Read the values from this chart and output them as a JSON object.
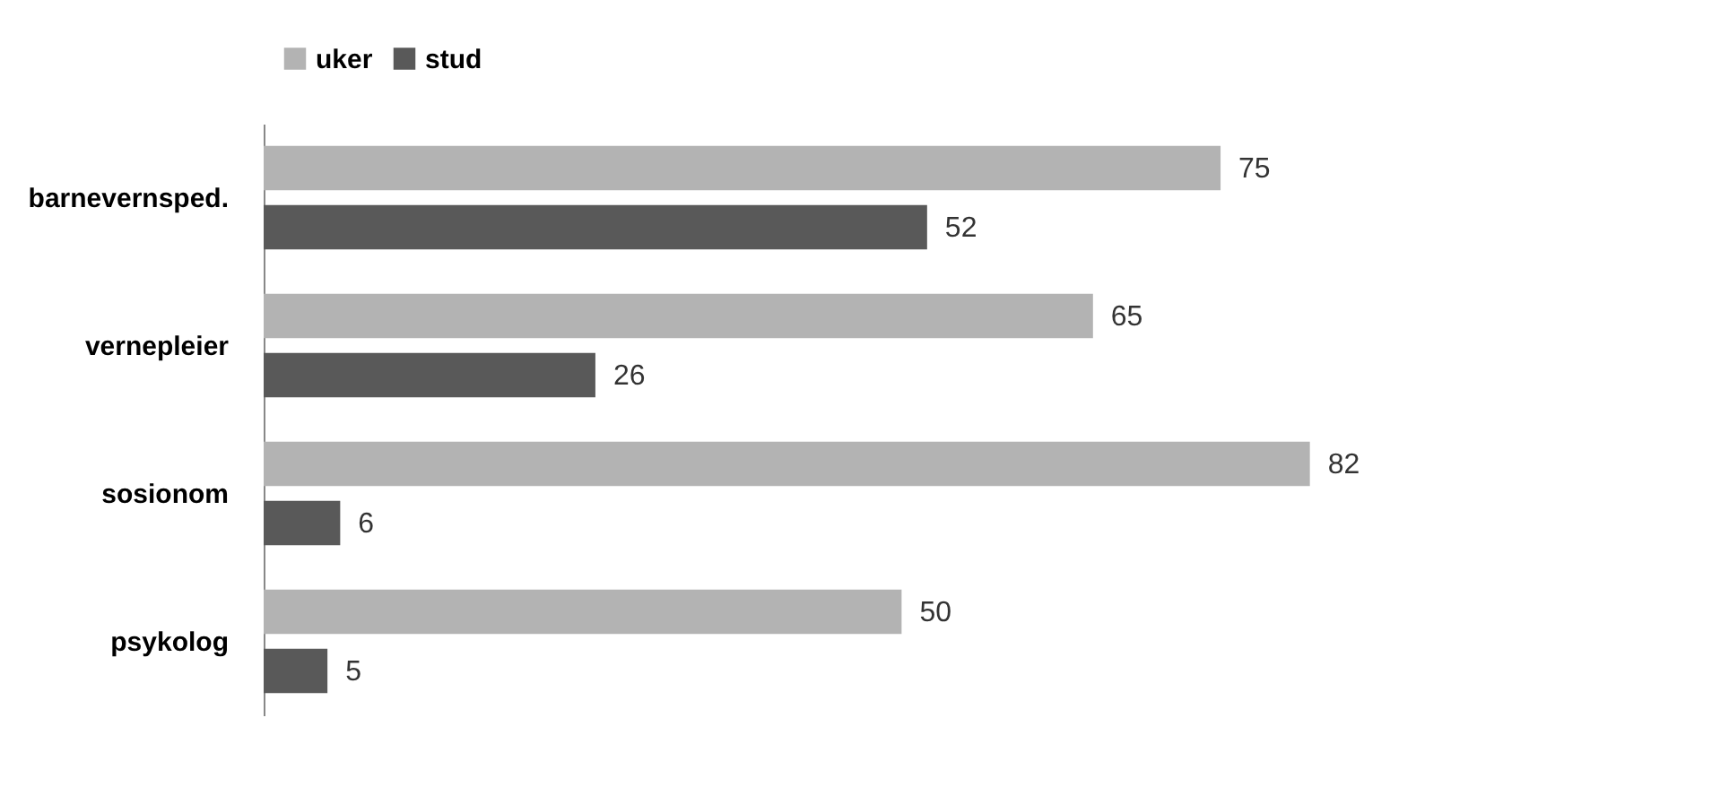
{
  "chart_data": {
    "type": "bar",
    "orientation": "horizontal",
    "categories": [
      "barnevernsped.",
      "vernepleier",
      "sosionom",
      "psykolog"
    ],
    "series": [
      {
        "name": "uker",
        "color": "#b3b3b3",
        "values": [
          75,
          65,
          82,
          50
        ]
      },
      {
        "name": "stud",
        "color": "#595959",
        "values": [
          52,
          26,
          6,
          5
        ]
      }
    ],
    "data_labels": true,
    "legend": "top",
    "grid": false
  }
}
